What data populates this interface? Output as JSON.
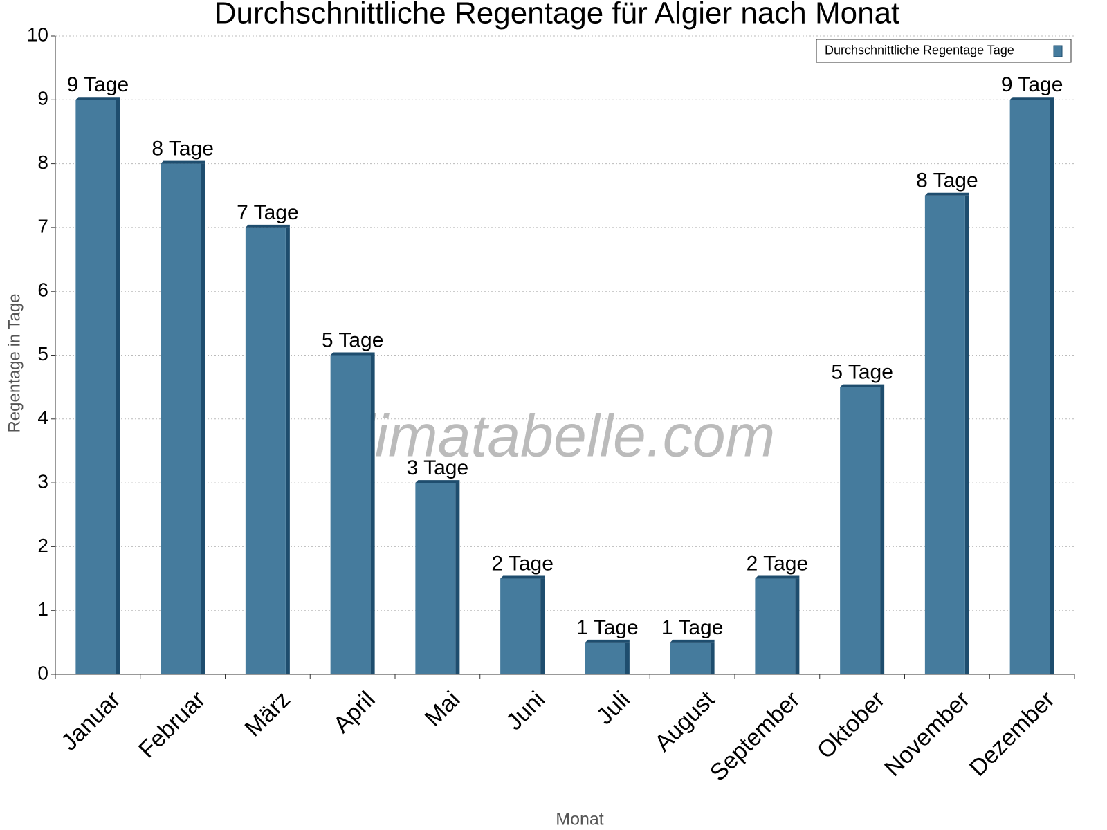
{
  "chart_data": {
    "type": "bar",
    "title": "Durchschnittliche Regentage für Algier nach Monat",
    "x_label": "Monat",
    "y_label": "Regentage in Tage",
    "watermark": "klimatabelle.com",
    "categories": [
      "Januar",
      "Februar",
      "März",
      "April",
      "Mai",
      "Juni",
      "Juli",
      "August",
      "September",
      "Oktober",
      "November",
      "Dezember"
    ],
    "series": [
      {
        "name": "Durchschnittliche Regentage Tage",
        "color": "#457b9d",
        "values": [
          9,
          8,
          7,
          5,
          3,
          1.5,
          0.5,
          0.5,
          1.5,
          4.5,
          7.5,
          9
        ],
        "value_labels": [
          "9 Tage",
          "8 Tage",
          "7 Tage",
          "5 Tage",
          "3 Tage",
          "2 Tage",
          "1 Tage",
          "1 Tage",
          "2 Tage",
          "5 Tage",
          "8 Tage",
          "9 Tage"
        ]
      }
    ],
    "ylim": [
      0,
      10
    ],
    "yticks": [
      0,
      1,
      2,
      3,
      4,
      5,
      6,
      7,
      8,
      9,
      10
    ],
    "grid": true,
    "legend": "upper right"
  }
}
